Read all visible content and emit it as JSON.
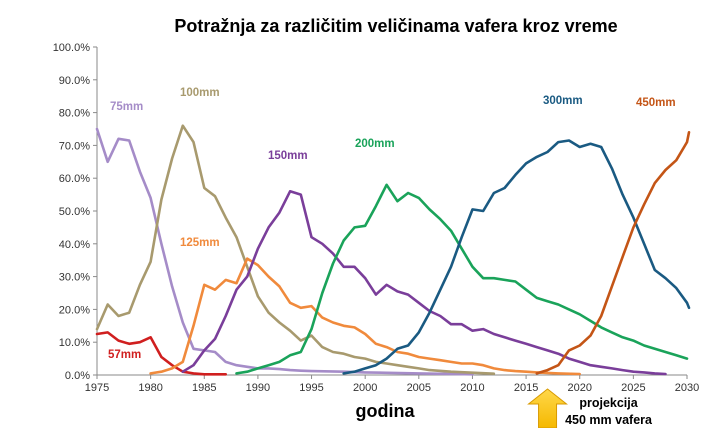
{
  "chart_data": {
    "type": "line",
    "title": "Potražnja za različitim veličinama vafera kroz vreme",
    "xlabel": "godina",
    "ylabel": "",
    "xlim": [
      1975,
      2030
    ],
    "ylim": [
      0,
      100
    ],
    "x_ticks": [
      "1975",
      "1980",
      "1985",
      "1990",
      "1995",
      "2000",
      "2005",
      "2010",
      "2015",
      "2020",
      "2025",
      "2030"
    ],
    "y_ticks": [
      "0.0%",
      "10.0%",
      "20.0%",
      "30.0%",
      "40.0%",
      "50.0%",
      "60.0%",
      "70.0%",
      "80.0%",
      "90.0%",
      "100.0%"
    ],
    "grid": false,
    "annotation": {
      "year": 2017,
      "lines": [
        "projekcija",
        "450 mm vafera"
      ],
      "color": "#f5b800"
    },
    "series": [
      {
        "name": "57mm",
        "color": "#d01f1f",
        "points": [
          [
            1975,
            12.5
          ],
          [
            1976,
            13
          ],
          [
            1977,
            10.5
          ],
          [
            1978,
            9.5
          ],
          [
            1979,
            10
          ],
          [
            1980,
            11.5
          ],
          [
            1981,
            5.5
          ],
          [
            1982,
            3
          ],
          [
            1983,
            1
          ],
          [
            1984,
            0.5
          ],
          [
            1985,
            0.2
          ],
          [
            1986,
            0.2
          ],
          [
            1987,
            0.2
          ]
        ]
      },
      {
        "name": "75mm",
        "color": "#a58cc8",
        "points": [
          [
            1975,
            75
          ],
          [
            1976,
            65
          ],
          [
            1977,
            72
          ],
          [
            1978,
            71.5
          ],
          [
            1979,
            62
          ],
          [
            1980,
            54
          ],
          [
            1981,
            40
          ],
          [
            1982,
            27
          ],
          [
            1983,
            16
          ],
          [
            1984,
            8
          ],
          [
            1985,
            7.5
          ],
          [
            1986,
            7
          ],
          [
            1987,
            4
          ],
          [
            1988,
            3
          ],
          [
            1989,
            2.5
          ],
          [
            1990,
            2
          ],
          [
            1991,
            2
          ],
          [
            1992,
            1.8
          ],
          [
            1993,
            1.5
          ],
          [
            1994,
            1.3
          ],
          [
            1995,
            1.2
          ],
          [
            1998,
            1
          ],
          [
            2000,
            0.8
          ],
          [
            2005,
            0.5
          ],
          [
            2010,
            0.2
          ]
        ]
      },
      {
        "name": "100mm",
        "color": "#a89a6e",
        "points": [
          [
            1975,
            14
          ],
          [
            1976,
            21.5
          ],
          [
            1977,
            18
          ],
          [
            1978,
            19
          ],
          [
            1979,
            27.5
          ],
          [
            1980,
            34.5
          ],
          [
            1981,
            53.5
          ],
          [
            1982,
            66
          ],
          [
            1983,
            76
          ],
          [
            1984,
            71
          ],
          [
            1985,
            57
          ],
          [
            1986,
            54.5
          ],
          [
            1987,
            48
          ],
          [
            1988,
            42
          ],
          [
            1989,
            33
          ],
          [
            1990,
            24
          ],
          [
            1991,
            19
          ],
          [
            1992,
            16
          ],
          [
            1993,
            13.5
          ],
          [
            1994,
            10.5
          ],
          [
            1995,
            12
          ],
          [
            1996,
            8.5
          ],
          [
            1997,
            7
          ],
          [
            1998,
            6.5
          ],
          [
            1999,
            5.5
          ],
          [
            2000,
            5
          ],
          [
            2001,
            4
          ],
          [
            2002,
            3.5
          ],
          [
            2003,
            3
          ],
          [
            2004,
            2.5
          ],
          [
            2005,
            2
          ],
          [
            2006,
            1.5
          ],
          [
            2008,
            1
          ],
          [
            2010,
            0.7
          ],
          [
            2012,
            0.4
          ]
        ]
      },
      {
        "name": "125mm",
        "color": "#f08a3c",
        "points": [
          [
            1980,
            0.5
          ],
          [
            1981,
            1
          ],
          [
            1982,
            2
          ],
          [
            1983,
            4
          ],
          [
            1984,
            15
          ],
          [
            1985,
            27.5
          ],
          [
            1986,
            26
          ],
          [
            1987,
            29
          ],
          [
            1988,
            28
          ],
          [
            1989,
            35.5
          ],
          [
            1990,
            33.5
          ],
          [
            1991,
            30
          ],
          [
            1992,
            27
          ],
          [
            1993,
            22
          ],
          [
            1994,
            20.5
          ],
          [
            1995,
            21
          ],
          [
            1996,
            17.5
          ],
          [
            1997,
            16
          ],
          [
            1998,
            15
          ],
          [
            1999,
            14.5
          ],
          [
            2000,
            12.5
          ],
          [
            2001,
            9.5
          ],
          [
            2002,
            8.5
          ],
          [
            2003,
            7
          ],
          [
            2004,
            6.5
          ],
          [
            2005,
            5.5
          ],
          [
            2006,
            5
          ],
          [
            2007,
            4.5
          ],
          [
            2008,
            4
          ],
          [
            2009,
            3.5
          ],
          [
            2010,
            3.5
          ],
          [
            2011,
            3
          ],
          [
            2012,
            2
          ],
          [
            2013,
            1.5
          ],
          [
            2014,
            1.2
          ],
          [
            2015,
            1
          ],
          [
            2016,
            0.8
          ],
          [
            2018,
            0.5
          ],
          [
            2020,
            0.3
          ]
        ]
      },
      {
        "name": "150mm",
        "color": "#7a3e9a",
        "points": [
          [
            1983,
            1
          ],
          [
            1984,
            3
          ],
          [
            1985,
            7.5
          ],
          [
            1986,
            11
          ],
          [
            1987,
            18
          ],
          [
            1988,
            26
          ],
          [
            1989,
            30
          ],
          [
            1990,
            38.5
          ],
          [
            1991,
            45
          ],
          [
            1992,
            49.5
          ],
          [
            1993,
            56
          ],
          [
            1994,
            55
          ],
          [
            1995,
            42
          ],
          [
            1996,
            40
          ],
          [
            1997,
            37
          ],
          [
            1998,
            33
          ],
          [
            1999,
            33
          ],
          [
            2000,
            29.5
          ],
          [
            2001,
            24.5
          ],
          [
            2002,
            27.5
          ],
          [
            2003,
            25.5
          ],
          [
            2004,
            24.5
          ],
          [
            2005,
            22
          ],
          [
            2006,
            19.5
          ],
          [
            2007,
            18
          ],
          [
            2008,
            15.5
          ],
          [
            2009,
            15.5
          ],
          [
            2010,
            13.5
          ],
          [
            2011,
            14
          ],
          [
            2012,
            12.5
          ],
          [
            2013,
            11.5
          ],
          [
            2014,
            10.5
          ],
          [
            2015,
            9.5
          ],
          [
            2016,
            8.5
          ],
          [
            2017,
            7.5
          ],
          [
            2018,
            6.5
          ],
          [
            2019,
            5
          ],
          [
            2020,
            4
          ],
          [
            2021,
            3
          ],
          [
            2022,
            2.5
          ],
          [
            2023,
            2
          ],
          [
            2024,
            1.5
          ],
          [
            2025,
            1
          ],
          [
            2026,
            0.8
          ],
          [
            2027,
            0.5
          ],
          [
            2028,
            0.3
          ]
        ]
      },
      {
        "name": "200mm",
        "color": "#1aa35a",
        "points": [
          [
            1988,
            0.5
          ],
          [
            1989,
            1
          ],
          [
            1990,
            2
          ],
          [
            1991,
            3
          ],
          [
            1992,
            4
          ],
          [
            1993,
            6
          ],
          [
            1994,
            7
          ],
          [
            1995,
            14
          ],
          [
            1996,
            25
          ],
          [
            1997,
            34
          ],
          [
            1998,
            41
          ],
          [
            1999,
            45
          ],
          [
            2000,
            45.5
          ],
          [
            2001,
            51.5
          ],
          [
            2002,
            58
          ],
          [
            2003,
            53
          ],
          [
            2004,
            55.5
          ],
          [
            2005,
            54
          ],
          [
            2006,
            50.5
          ],
          [
            2007,
            47.5
          ],
          [
            2008,
            44
          ],
          [
            2009,
            38.5
          ],
          [
            2010,
            33
          ],
          [
            2011,
            29.5
          ],
          [
            2012,
            29.5
          ],
          [
            2013,
            29
          ],
          [
            2014,
            28.5
          ],
          [
            2015,
            26
          ],
          [
            2016,
            23.5
          ],
          [
            2017,
            22.5
          ],
          [
            2018,
            21.5
          ],
          [
            2019,
            20
          ],
          [
            2020,
            18.5
          ],
          [
            2021,
            16.5
          ],
          [
            2022,
            14.5
          ],
          [
            2023,
            13
          ],
          [
            2024,
            11.5
          ],
          [
            2025,
            10.5
          ],
          [
            2026,
            9
          ],
          [
            2027,
            8
          ],
          [
            2028,
            7
          ],
          [
            2029,
            6
          ],
          [
            2030,
            5
          ]
        ]
      },
      {
        "name": "300mm",
        "color": "#1a5a82",
        "points": [
          [
            1998,
            0.5
          ],
          [
            1999,
            1
          ],
          [
            2000,
            2
          ],
          [
            2001,
            3
          ],
          [
            2002,
            5
          ],
          [
            2003,
            8
          ],
          [
            2004,
            9
          ],
          [
            2005,
            13
          ],
          [
            2006,
            19
          ],
          [
            2007,
            26
          ],
          [
            2008,
            33
          ],
          [
            2009,
            42
          ],
          [
            2010,
            50.5
          ],
          [
            2011,
            50
          ],
          [
            2012,
            55.5
          ],
          [
            2013,
            57
          ],
          [
            2014,
            61
          ],
          [
            2015,
            64.5
          ],
          [
            2016,
            66.5
          ],
          [
            2017,
            68
          ],
          [
            2018,
            71
          ],
          [
            2019,
            71.5
          ],
          [
            2020,
            69.5
          ],
          [
            2021,
            70.5
          ],
          [
            2022,
            69.5
          ],
          [
            2023,
            63
          ],
          [
            2024,
            55
          ],
          [
            2025,
            48
          ],
          [
            2026,
            40
          ],
          [
            2027,
            32
          ],
          [
            2028,
            29.5
          ],
          [
            2029,
            26.5
          ],
          [
            2030,
            22
          ],
          [
            2031,
            20.5
          ]
        ]
      },
      {
        "name": "450mm",
        "color": "#c45516",
        "points": [
          [
            2016,
            0.5
          ],
          [
            2017,
            1.5
          ],
          [
            2018,
            3
          ],
          [
            2019,
            7.5
          ],
          [
            2020,
            9
          ],
          [
            2021,
            12
          ],
          [
            2022,
            18
          ],
          [
            2023,
            27
          ],
          [
            2024,
            36
          ],
          [
            2025,
            45
          ],
          [
            2026,
            52
          ],
          [
            2027,
            58.5
          ],
          [
            2028,
            62.5
          ],
          [
            2029,
            65.5
          ],
          [
            2030,
            71
          ],
          [
            2031,
            74
          ]
        ]
      }
    ]
  }
}
